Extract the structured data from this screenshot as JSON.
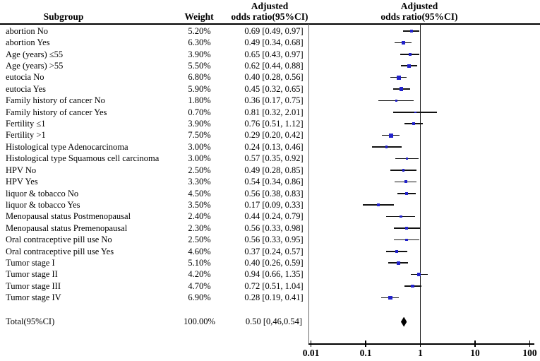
{
  "header": {
    "subgroup": "Subgroup",
    "weight": "Weight",
    "adjusted": "Adjusted",
    "or_ci": "odds ratio(95%CI)",
    "plot_adjusted": "Adjusted",
    "plot_or_ci": "odds ratio(95%CI)"
  },
  "colors": {
    "marker": "#2222cc",
    "ci_line": "#111111",
    "diamond": "#000000"
  },
  "chart_data": {
    "type": "scatter",
    "subtype": "forest_plot",
    "x_scale": "log10",
    "xlim": [
      0.01,
      100
    ],
    "x_ticks": [
      0.01,
      0.1,
      1,
      10,
      100
    ],
    "x_tick_labels": [
      "0.01",
      "0.1",
      "1",
      "10",
      "100"
    ],
    "reference_line_x": 1,
    "columns": [
      "Subgroup",
      "Weight",
      "Adjusted odds ratio(95%CI)",
      "Adjusted odds ratio(95%CI)"
    ],
    "rows": [
      {
        "label": "abortion No",
        "weight": "5.20%",
        "or_text": "0.69 [0.49, 0.97]",
        "or": 0.69,
        "ci_low": 0.49,
        "ci_high": 0.97
      },
      {
        "label": "abortion Yes",
        "weight": "6.30%",
        "or_text": "0.49 [0.34, 0.68]",
        "or": 0.49,
        "ci_low": 0.34,
        "ci_high": 0.68
      },
      {
        "label": "Age (years) ≤55",
        "weight": "3.90%",
        "or_text": "0.65 [0.43, 0.97]",
        "or": 0.65,
        "ci_low": 0.43,
        "ci_high": 0.97
      },
      {
        "label": "Age (years) >55",
        "weight": "5.50%",
        "or_text": "0.62 [0.44, 0.88]",
        "or": 0.62,
        "ci_low": 0.44,
        "ci_high": 0.88
      },
      {
        "label": "eutocia No",
        "weight": "6.80%",
        "or_text": "0.40 [0.28, 0.56]",
        "or": 0.4,
        "ci_low": 0.28,
        "ci_high": 0.56
      },
      {
        "label": "eutocia Yes",
        "weight": "5.90%",
        "or_text": "0.45 [0.32, 0.65]",
        "or": 0.45,
        "ci_low": 0.32,
        "ci_high": 0.65
      },
      {
        "label": "Family history of cancer No",
        "weight": "1.80%",
        "or_text": "0.36 [0.17, 0.75]",
        "or": 0.36,
        "ci_low": 0.17,
        "ci_high": 0.75
      },
      {
        "label": "Family history of cancer Yes",
        "weight": "0.70%",
        "or_text": "0.81 [0.32, 2.01]",
        "or": 0.81,
        "ci_low": 0.32,
        "ci_high": 2.01
      },
      {
        "label": "Fertility ≤1",
        "weight": "3.90%",
        "or_text": "0.76 [0.51, 1.12]",
        "or": 0.76,
        "ci_low": 0.51,
        "ci_high": 1.12
      },
      {
        "label": "Fertility >1",
        "weight": "7.50%",
        "or_text": "0.29 [0.20, 0.42]",
        "or": 0.29,
        "ci_low": 0.2,
        "ci_high": 0.42
      },
      {
        "label": "Histological type Adenocarcinoma",
        "weight": "3.00%",
        "or_text": "0.24 [0.13, 0.46]",
        "or": 0.24,
        "ci_low": 0.13,
        "ci_high": 0.46
      },
      {
        "label": "Histological type Squamous cell carcinoma",
        "weight": "3.00%",
        "or_text": "0.57 [0.35, 0.92]",
        "or": 0.57,
        "ci_low": 0.35,
        "ci_high": 0.92
      },
      {
        "label": "HPV No",
        "weight": "2.50%",
        "or_text": "0.49 [0.28, 0.85]",
        "or": 0.49,
        "ci_low": 0.28,
        "ci_high": 0.85
      },
      {
        "label": "HPV Yes",
        "weight": "3.30%",
        "or_text": "0.54 [0.34, 0.86]",
        "or": 0.54,
        "ci_low": 0.34,
        "ci_high": 0.86
      },
      {
        "label": "liquor & tobacco No",
        "weight": "4.50%",
        "or_text": "0.56 [0.38, 0.83]",
        "or": 0.56,
        "ci_low": 0.38,
        "ci_high": 0.83
      },
      {
        "label": "liquor & tobacco Yes",
        "weight": "3.50%",
        "or_text": "0.17 [0.09, 0.33]",
        "or": 0.17,
        "ci_low": 0.09,
        "ci_high": 0.33
      },
      {
        "label": "Menopausal status Postmenopausal",
        "weight": "2.40%",
        "or_text": "0.44 [0.24, 0.79]",
        "or": 0.44,
        "ci_low": 0.24,
        "ci_high": 0.79
      },
      {
        "label": "Menopausal status Premenopausal",
        "weight": "2.30%",
        "or_text": "0.56 [0.33, 0.98]",
        "or": 0.56,
        "ci_low": 0.33,
        "ci_high": 0.98
      },
      {
        "label": "Oral contraceptive pill use No",
        "weight": "2.50%",
        "or_text": "0.56 [0.33, 0.95]",
        "or": 0.56,
        "ci_low": 0.33,
        "ci_high": 0.95
      },
      {
        "label": "Oral contraceptive pill use Yes",
        "weight": "4.60%",
        "or_text": "0.37 [0.24, 0.57]",
        "or": 0.37,
        "ci_low": 0.24,
        "ci_high": 0.57
      },
      {
        "label": "Tumor stage I",
        "weight": "5.10%",
        "or_text": "0.40 [0.26, 0.59]",
        "or": 0.4,
        "ci_low": 0.26,
        "ci_high": 0.59
      },
      {
        "label": "Tumor stage II",
        "weight": "4.20%",
        "or_text": "0.94 [0.66, 1.35]",
        "or": 0.94,
        "ci_low": 0.66,
        "ci_high": 1.35
      },
      {
        "label": "Tumor stage III",
        "weight": "4.70%",
        "or_text": "0.72 [0.51, 1.04]",
        "or": 0.72,
        "ci_low": 0.51,
        "ci_high": 1.04
      },
      {
        "label": "Tumor stage IV",
        "weight": "6.90%",
        "or_text": "0.28 [0.19, 0.41]",
        "or": 0.28,
        "ci_low": 0.19,
        "ci_high": 0.41
      }
    ],
    "total": {
      "label": "Total(95%CI)",
      "weight": "100.00%",
      "or_text": "0.50 [0,46,0.54]",
      "or": 0.5,
      "ci_low": 0.46,
      "ci_high": 0.54
    }
  }
}
